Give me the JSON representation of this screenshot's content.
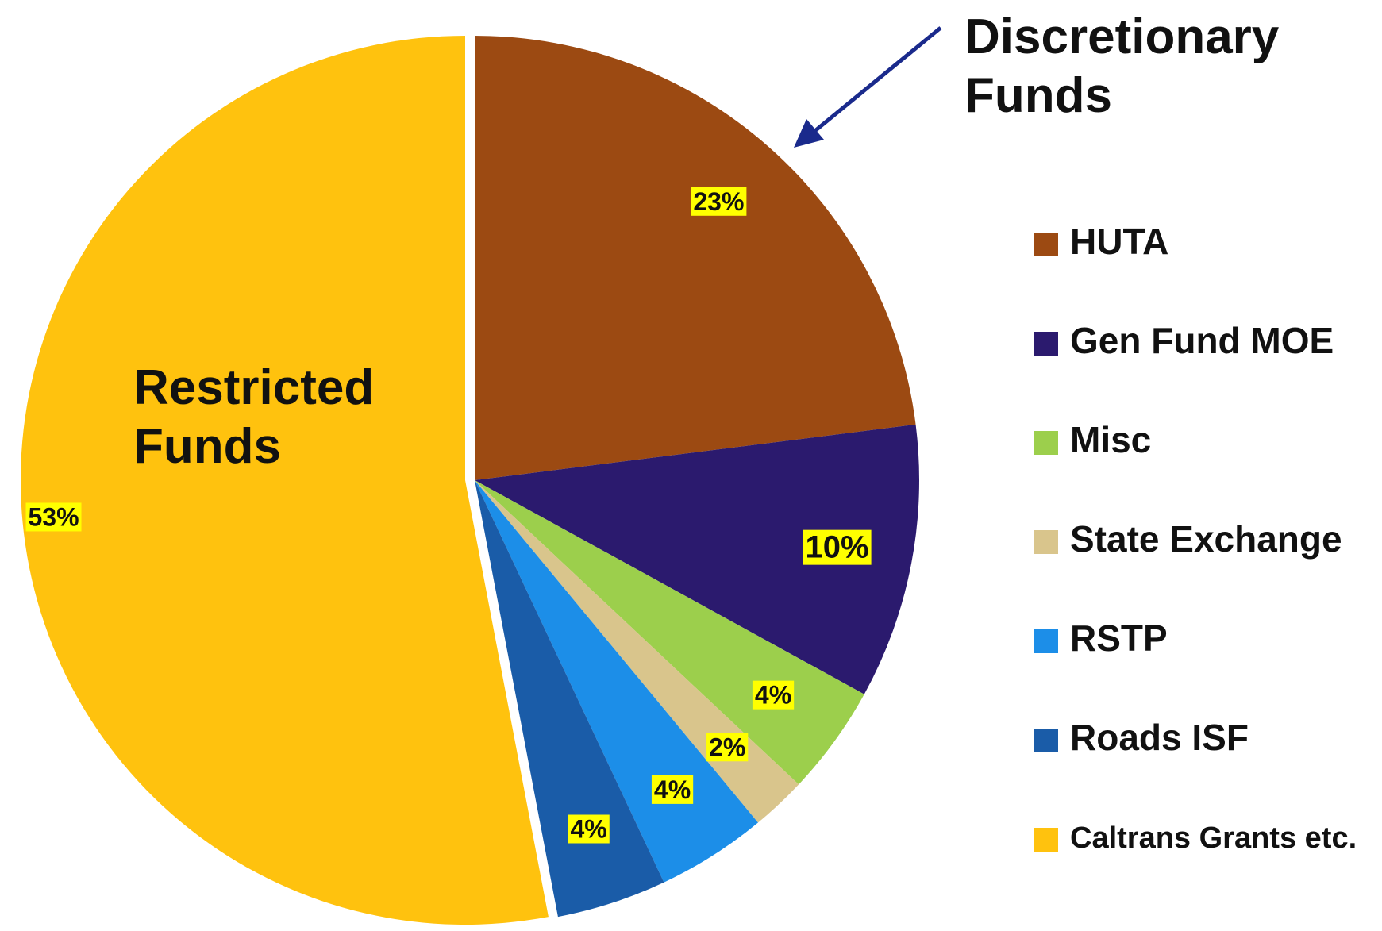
{
  "chart_data": {
    "type": "pie",
    "categories": [
      "HUTA",
      "Gen Fund MOE",
      "Misc",
      "State Exchange",
      "RSTP",
      "Roads ISF",
      "Caltrans Grants etc."
    ],
    "values": [
      23,
      10,
      4,
      2,
      4,
      4,
      53
    ],
    "value_labels": [
      "23%",
      "10%",
      "4%",
      "2%",
      "4%",
      "4%",
      "53%"
    ],
    "colors": [
      "#9c4a12",
      "#2b1a6e",
      "#9ccf4c",
      "#d9c58c",
      "#1c8ee8",
      "#1a5ca8",
      "#ffc20e"
    ],
    "legend": "right",
    "annotations": [
      "Discretionary Funds",
      "Restricted Funds"
    ]
  }
}
